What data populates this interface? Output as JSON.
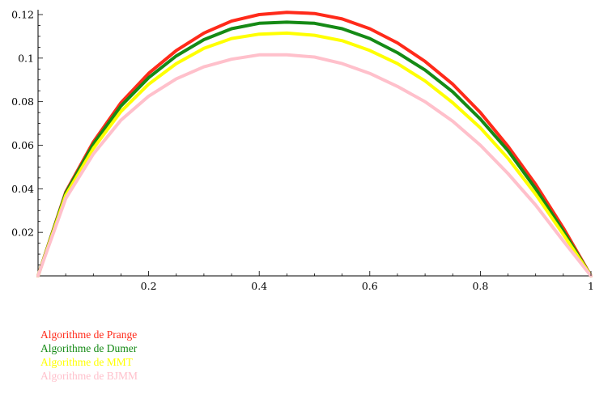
{
  "chart_data": {
    "type": "line",
    "title": "",
    "xlabel": "",
    "ylabel": "",
    "xlim": [
      0,
      1
    ],
    "ylim": [
      0,
      0.12
    ],
    "x_ticks": [
      "0.2",
      "0.4",
      "0.6",
      "0.8",
      "1"
    ],
    "y_ticks": [
      "0.02",
      "0.04",
      "0.06",
      "0.08",
      "0.1",
      "0.12"
    ],
    "grid": false,
    "legend_placement": "bottom-left",
    "series": [
      {
        "name": "Algorithme de Prange",
        "color": "#ff2a1a",
        "x": [
          0,
          0.05,
          0.1,
          0.15,
          0.2,
          0.25,
          0.3,
          0.35,
          0.4,
          0.45,
          0.5,
          0.55,
          0.6,
          0.65,
          0.7,
          0.75,
          0.8,
          0.85,
          0.9,
          0.95,
          1.0
        ],
        "y": [
          0.0,
          0.0385,
          0.0615,
          0.0795,
          0.093,
          0.1035,
          0.1115,
          0.117,
          0.12,
          0.121,
          0.1205,
          0.118,
          0.1135,
          0.107,
          0.0985,
          0.088,
          0.075,
          0.0595,
          0.042,
          0.022,
          0.0
        ]
      },
      {
        "name": "Algorithme de Dumer",
        "color": "#158a15",
        "x": [
          0,
          0.05,
          0.1,
          0.15,
          0.2,
          0.25,
          0.3,
          0.35,
          0.4,
          0.45,
          0.5,
          0.55,
          0.6,
          0.65,
          0.7,
          0.75,
          0.8,
          0.85,
          0.9,
          0.95,
          1.0
        ],
        "y": [
          0.0,
          0.038,
          0.0605,
          0.078,
          0.091,
          0.101,
          0.1085,
          0.1135,
          0.116,
          0.1165,
          0.116,
          0.1135,
          0.109,
          0.1025,
          0.0945,
          0.0845,
          0.072,
          0.0575,
          0.04,
          0.0205,
          0.0
        ]
      },
      {
        "name": "Algorithme de MMT",
        "color": "#ffff00",
        "x": [
          0,
          0.05,
          0.1,
          0.15,
          0.2,
          0.25,
          0.3,
          0.35,
          0.4,
          0.45,
          0.5,
          0.55,
          0.6,
          0.65,
          0.7,
          0.75,
          0.8,
          0.85,
          0.9,
          0.95,
          1.0
        ],
        "y": [
          0.0,
          0.037,
          0.0585,
          0.0755,
          0.088,
          0.0975,
          0.1045,
          0.109,
          0.111,
          0.1115,
          0.1105,
          0.108,
          0.1035,
          0.0975,
          0.0895,
          0.0795,
          0.068,
          0.054,
          0.0375,
          0.019,
          0.0
        ]
      },
      {
        "name": "Algorithme de BJMM",
        "color": "#ffc0cb",
        "x": [
          0,
          0.05,
          0.1,
          0.15,
          0.2,
          0.25,
          0.3,
          0.35,
          0.4,
          0.45,
          0.5,
          0.55,
          0.6,
          0.65,
          0.7,
          0.75,
          0.8,
          0.85,
          0.9,
          0.95,
          1.0
        ],
        "y": [
          0.0,
          0.0355,
          0.056,
          0.0715,
          0.0825,
          0.0905,
          0.096,
          0.0995,
          0.1015,
          0.1015,
          0.1005,
          0.0975,
          0.093,
          0.087,
          0.08,
          0.071,
          0.06,
          0.047,
          0.0325,
          0.016,
          0.0
        ]
      }
    ]
  }
}
